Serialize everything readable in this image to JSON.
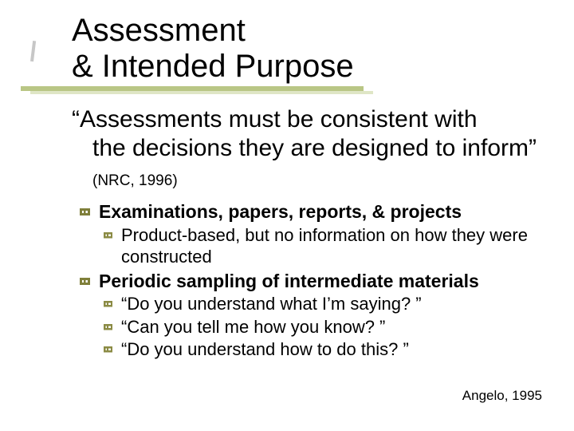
{
  "colors": {
    "background": "#ffffff",
    "text": "#000000",
    "underline_main": "#b9c685",
    "underline_shadow": "#dfe6c6",
    "bullet_fence": "#7f7f3a"
  },
  "typography": {
    "family": "Comic Sans MS",
    "title_fontsize": 40,
    "quote_fontsize": 30,
    "citation_small_fontsize": 19,
    "bullet_fontsize": 23,
    "subbullet_fontsize": 22,
    "footer_fontsize": 17
  },
  "title": {
    "line1": "Assessment",
    "line2": "& Intended Purpose"
  },
  "quote": {
    "open": "“Assessments must be consistent with",
    "rest": "the decisions they are designed to inform”",
    "citation": "(NRC, 1996)"
  },
  "bullets": [
    {
      "text": "Examinations, papers, reports, & projects",
      "sub": [
        "Product-based, but no information on how they were constructed"
      ]
    },
    {
      "text": "Periodic sampling of intermediate materials",
      "sub": [
        "“Do you understand what I’m saying? ”",
        "“Can you tell me how you know? ”",
        "“Do you understand how to do this? ”"
      ]
    }
  ],
  "footer_citation": "Angelo, 1995"
}
